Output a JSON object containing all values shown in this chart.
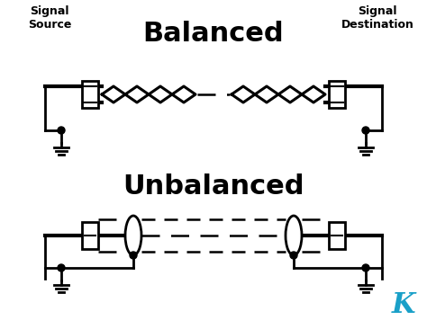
{
  "bg_color": "#ffffff",
  "text_color": "#000000",
  "teal_color": "#1aa0c8",
  "title_balanced": "Balanced",
  "title_unbalanced": "Unbalanced",
  "label_source": "Signal\nSource",
  "label_dest": "Signal\nDestination",
  "line_color": "#000000",
  "figsize": [
    4.74,
    3.66
  ],
  "dpi": 100
}
